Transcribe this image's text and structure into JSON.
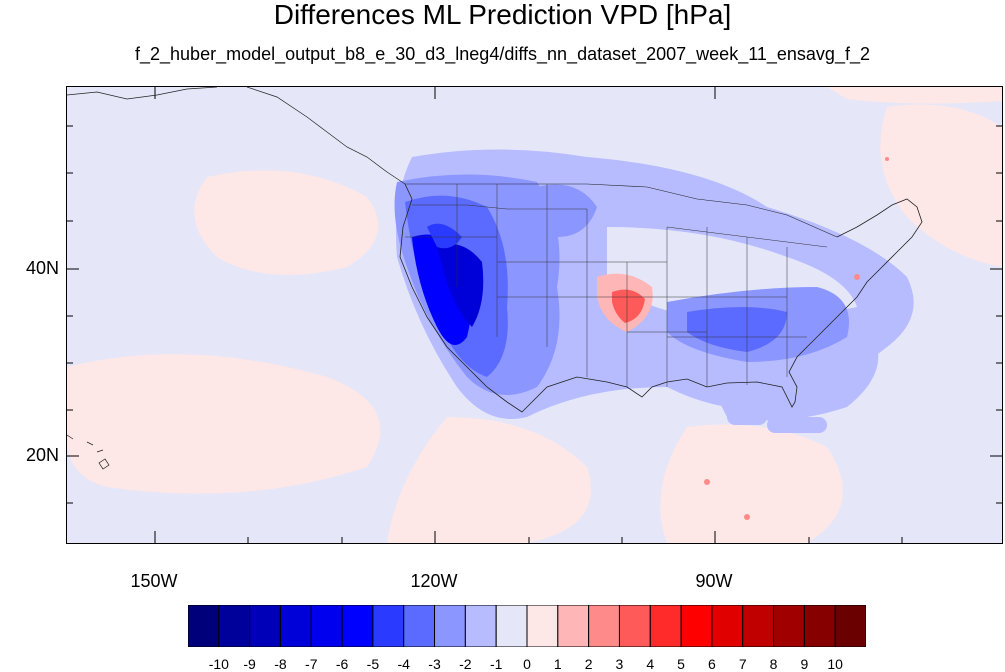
{
  "title": "Differences ML Prediction VPD [hPa]",
  "subtitle": "f_2_huber_model_output_b8_e_30_d3_lneg4/diffs_nn_dataset_2007_week_11_ensavg_f_2",
  "map": {
    "lon_range": [
      -160,
      -60
    ],
    "lat_range": [
      10,
      59
    ],
    "lat_labels": [
      "40N",
      "20N"
    ],
    "lon_labels": [
      "150W",
      "120W",
      "90W"
    ],
    "background_color": "#e5e7f9"
  },
  "colorbar": {
    "labels": [
      "-10",
      "-9",
      "-8",
      "-7",
      "-6",
      "-5",
      "-4",
      "-3",
      "-2",
      "-1",
      "0",
      "1",
      "2",
      "3",
      "4",
      "5",
      "6",
      "7",
      "8",
      "9",
      "10"
    ],
    "colors": [
      "#00007a",
      "#00009a",
      "#0000b8",
      "#0000d8",
      "#0000ee",
      "#0000ff",
      "#2a3bff",
      "#5c6bff",
      "#8c96ff",
      "#b6bcff",
      "#e5e7f9",
      "#fde7e7",
      "#ffb6b6",
      "#ff8a8a",
      "#ff5a5a",
      "#ff2a2a",
      "#ff0000",
      "#e00000",
      "#c00000",
      "#a00000",
      "#860000",
      "#6a0000"
    ]
  }
}
